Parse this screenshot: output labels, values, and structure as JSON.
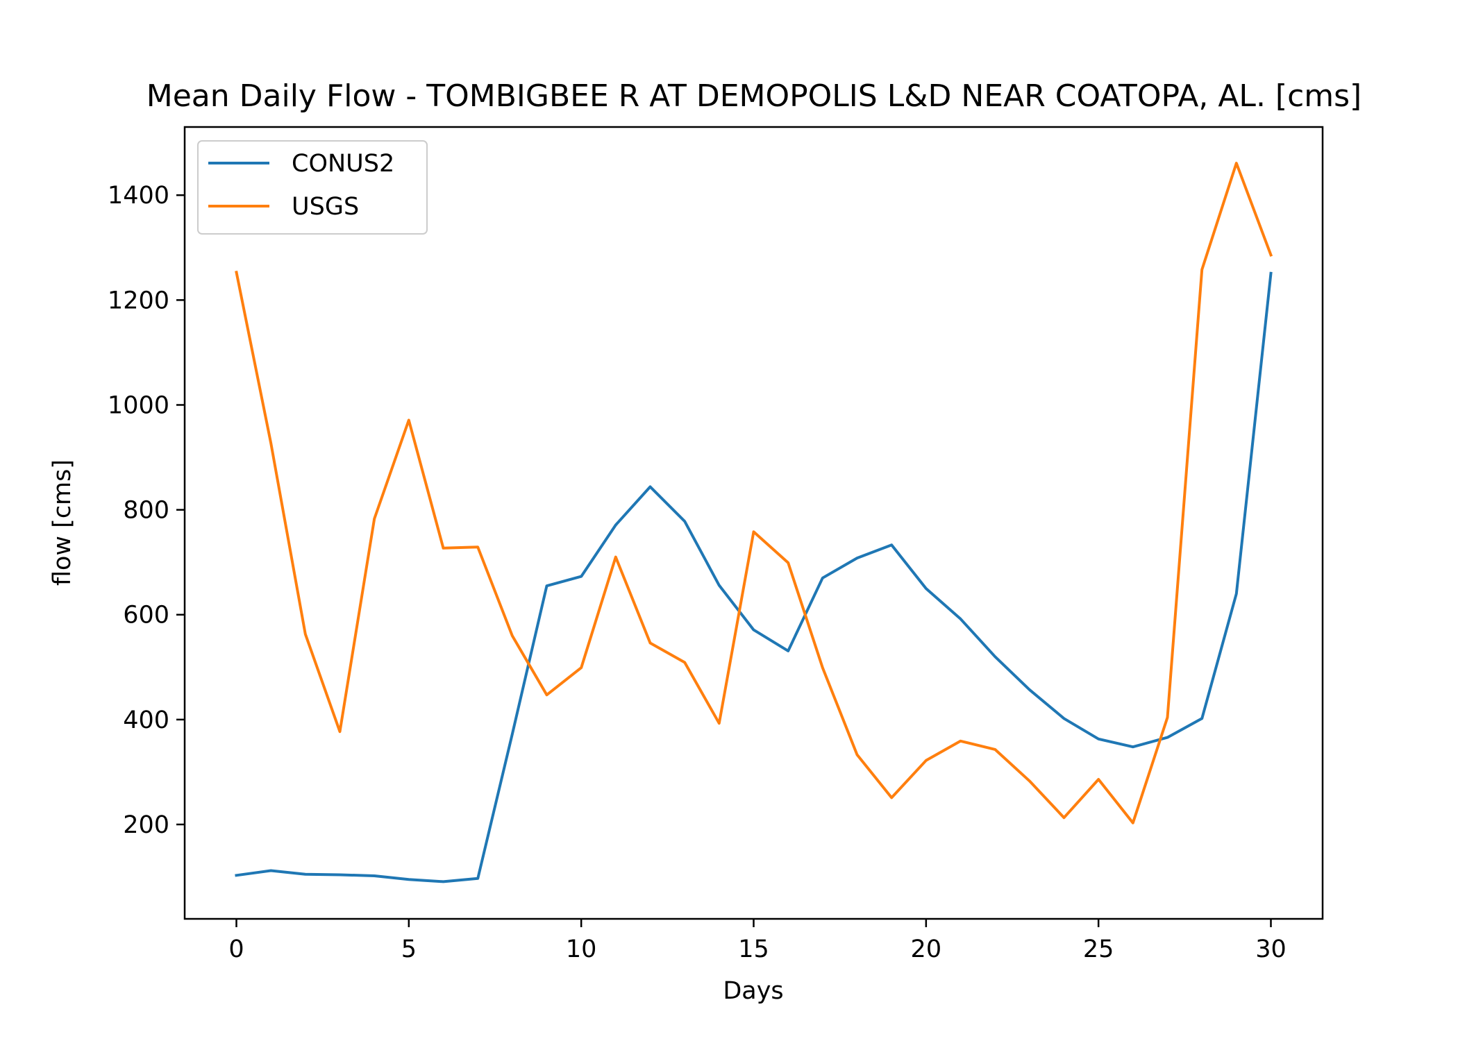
{
  "chart_data": {
    "type": "line",
    "title": "Mean Daily Flow - TOMBIGBEE R AT DEMOPOLIS L&D NEAR COATOPA, AL. [cms]",
    "xlabel": "Days",
    "ylabel": "flow [cms]",
    "xlim": [
      -1.5,
      31.5
    ],
    "ylim": [
      20,
      1530
    ],
    "x_ticks": [
      0,
      5,
      10,
      15,
      20,
      25,
      30
    ],
    "y_ticks": [
      200,
      400,
      600,
      800,
      1000,
      1200,
      1400
    ],
    "grid": false,
    "legend_position": "upper-left",
    "x": [
      0,
      1,
      2,
      3,
      4,
      5,
      6,
      7,
      8,
      9,
      10,
      11,
      12,
      13,
      14,
      15,
      16,
      17,
      18,
      19,
      20,
      21,
      22,
      23,
      24,
      25,
      26,
      27,
      28,
      29,
      30
    ],
    "series": [
      {
        "name": "CONUS2",
        "color": "#1f77b4",
        "values": [
          103,
          112,
          105,
          104,
          102,
          95,
          91,
          97,
          372,
          655,
          673,
          771,
          844,
          778,
          656,
          571,
          531,
          670,
          708,
          733,
          650,
          592,
          520,
          457,
          402,
          363,
          348,
          366,
          402,
          640,
          1251
        ]
      },
      {
        "name": "USGS",
        "color": "#ff7f0e",
        "values": [
          1253,
          927,
          563,
          377,
          783,
          971,
          727,
          729,
          560,
          447,
          499,
          710,
          546,
          509,
          393,
          758,
          699,
          499,
          333,
          251,
          322,
          359,
          343,
          283,
          213,
          286,
          203,
          404,
          1258,
          1461,
          1286
        ]
      }
    ]
  }
}
